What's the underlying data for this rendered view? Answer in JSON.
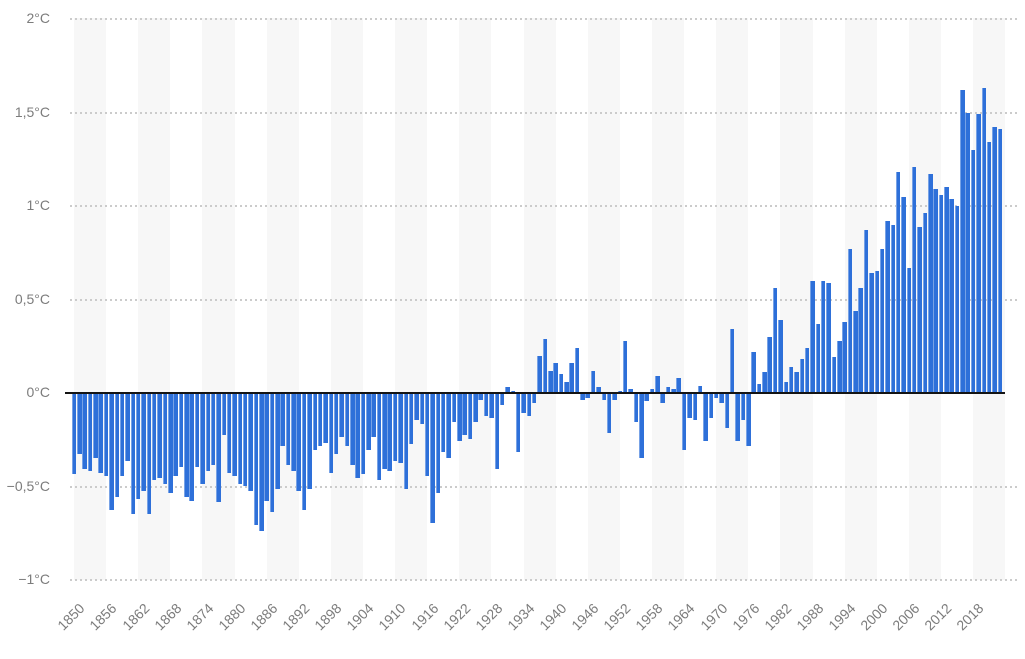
{
  "chart_data": {
    "type": "bar",
    "title": "",
    "xlabel": "",
    "ylabel": "",
    "unit": "°C",
    "ylim": [
      -1,
      2
    ],
    "grid": "dotted horizontal lines, alternating light vertical bands",
    "legend_position": "none",
    "start_year": 1850,
    "end_year": 2023,
    "x": [
      1850,
      1851,
      1852,
      1853,
      1854,
      1855,
      1856,
      1857,
      1858,
      1859,
      1860,
      1861,
      1862,
      1863,
      1864,
      1865,
      1866,
      1867,
      1868,
      1869,
      1870,
      1871,
      1872,
      1873,
      1874,
      1875,
      1876,
      1877,
      1878,
      1879,
      1880,
      1881,
      1882,
      1883,
      1884,
      1885,
      1886,
      1887,
      1888,
      1889,
      1890,
      1891,
      1892,
      1893,
      1894,
      1895,
      1896,
      1897,
      1898,
      1899,
      1900,
      1901,
      1902,
      1903,
      1904,
      1905,
      1906,
      1907,
      1908,
      1909,
      1910,
      1911,
      1912,
      1913,
      1914,
      1915,
      1916,
      1917,
      1918,
      1919,
      1920,
      1921,
      1922,
      1923,
      1924,
      1925,
      1926,
      1927,
      1928,
      1929,
      1930,
      1931,
      1932,
      1933,
      1934,
      1935,
      1936,
      1937,
      1938,
      1939,
      1940,
      1941,
      1942,
      1943,
      1944,
      1945,
      1946,
      1947,
      1948,
      1949,
      1950,
      1951,
      1952,
      1953,
      1954,
      1955,
      1956,
      1957,
      1958,
      1959,
      1960,
      1961,
      1962,
      1963,
      1964,
      1965,
      1966,
      1967,
      1968,
      1969,
      1970,
      1971,
      1972,
      1973,
      1974,
      1975,
      1976,
      1977,
      1978,
      1979,
      1980,
      1981,
      1982,
      1983,
      1984,
      1985,
      1986,
      1987,
      1988,
      1989,
      1990,
      1991,
      1992,
      1993,
      1994,
      1995,
      1996,
      1997,
      1998,
      1999,
      2000,
      2001,
      2002,
      2003,
      2004,
      2005,
      2006,
      2007,
      2008,
      2009,
      2010,
      2011,
      2012,
      2013,
      2014,
      2015,
      2016,
      2017,
      2018,
      2019,
      2020,
      2021,
      2022,
      2023
    ],
    "values": [
      -0.43,
      -0.32,
      -0.4,
      -0.41,
      -0.34,
      -0.42,
      -0.44,
      -0.62,
      -0.55,
      -0.44,
      -0.36,
      -0.64,
      -0.56,
      -0.52,
      -0.64,
      -0.46,
      -0.45,
      -0.48,
      -0.53,
      -0.44,
      -0.39,
      -0.55,
      -0.57,
      -0.39,
      -0.48,
      -0.41,
      -0.38,
      -0.58,
      -0.22,
      -0.42,
      -0.44,
      -0.48,
      -0.49,
      -0.52,
      -0.7,
      -0.73,
      -0.57,
      -0.63,
      -0.51,
      -0.28,
      -0.38,
      -0.41,
      -0.52,
      -0.62,
      -0.51,
      -0.3,
      -0.28,
      -0.26,
      -0.42,
      -0.32,
      -0.23,
      -0.28,
      -0.38,
      -0.45,
      -0.43,
      -0.3,
      -0.23,
      -0.46,
      -0.4,
      -0.41,
      -0.36,
      -0.37,
      -0.51,
      -0.27,
      -0.14,
      -0.16,
      -0.44,
      -0.69,
      -0.53,
      -0.31,
      -0.34,
      -0.15,
      -0.25,
      -0.22,
      -0.24,
      -0.15,
      -0.03,
      -0.12,
      -0.13,
      -0.4,
      -0.06,
      0.03,
      0.01,
      -0.31,
      -0.1,
      -0.12,
      -0.05,
      0.2,
      0.29,
      0.12,
      0.16,
      0.1,
      0.06,
      0.16,
      0.24,
      -0.03,
      -0.02,
      0.12,
      0.03,
      -0.03,
      -0.21,
      -0.03,
      0.01,
      0.28,
      0.02,
      -0.15,
      -0.34,
      -0.04,
      0.02,
      0.09,
      -0.05,
      0.03,
      0.02,
      0.08,
      -0.3,
      -0.13,
      -0.14,
      0.04,
      -0.25,
      -0.13,
      -0.02,
      -0.05,
      -0.18,
      0.34,
      -0.25,
      -0.14,
      -0.28,
      0.22,
      0.05,
      0.11,
      0.3,
      0.56,
      0.39,
      0.06,
      0.14,
      0.11,
      0.18,
      0.24,
      0.6,
      0.37,
      0.6,
      0.59,
      0.19,
      0.28,
      0.38,
      0.77,
      0.44,
      0.56,
      0.87,
      0.64,
      0.65,
      0.77,
      0.92,
      0.9,
      1.18,
      1.05,
      0.67,
      1.21,
      0.89,
      0.96,
      1.17,
      1.09,
      1.06,
      1.1,
      1.04,
      1.0,
      1.62,
      1.5,
      1.3,
      1.49,
      1.63,
      1.34,
      1.42,
      1.41
    ],
    "yticks": [
      {
        "label": "2°C",
        "value": 2
      },
      {
        "label": "1,5°C",
        "value": 1.5
      },
      {
        "label": "1°C",
        "value": 1
      },
      {
        "label": "0,5°C",
        "value": 0.5
      },
      {
        "label": "0°C",
        "value": 0
      },
      {
        "label": "−0,5°C",
        "value": -0.5
      },
      {
        "label": "−1°C",
        "value": -1
      }
    ],
    "xticks": [
      1850,
      1856,
      1862,
      1868,
      1874,
      1880,
      1886,
      1892,
      1898,
      1904,
      1910,
      1916,
      1922,
      1928,
      1934,
      1940,
      1946,
      1952,
      1958,
      1964,
      1970,
      1976,
      1982,
      1988,
      1994,
      2000,
      2006,
      2012,
      2018
    ]
  },
  "colors": {
    "bar": "#2e70d9",
    "bar_edge_highlight": "rgba(255,255,255,0.35)",
    "band": "#f7f7f7",
    "grid_dots": "#cbcbcb",
    "axis_line": "#141414",
    "tick_text": "#7c7c7c",
    "background": "#ffffff"
  }
}
